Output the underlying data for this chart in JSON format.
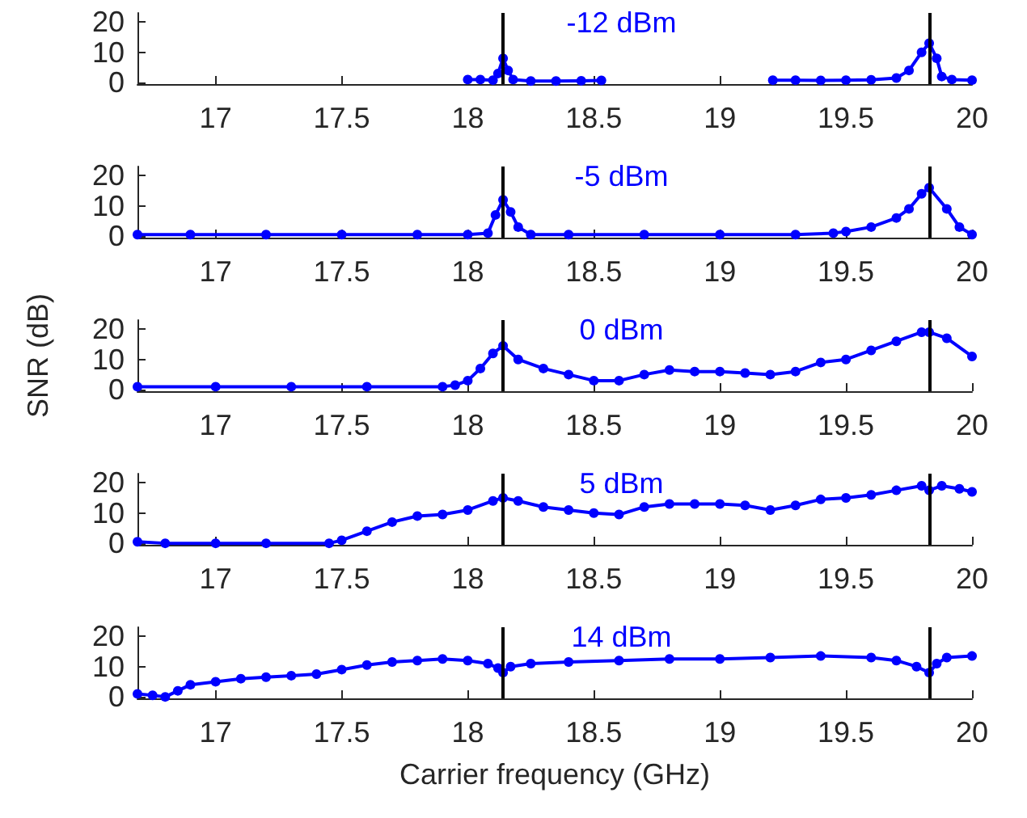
{
  "chart_data": [
    {
      "type": "line",
      "marker": "circle",
      "xlim": [
        16.69,
        20
      ],
      "xticks": [
        17,
        17.5,
        18,
        18.5,
        19,
        19.5,
        20
      ],
      "ylim": [
        -0.5,
        23
      ],
      "yticks": [
        0,
        10,
        20
      ],
      "annotations": [
        "-12 dBm"
      ],
      "ref_lines": [
        {
          "axis": "x",
          "value": 18.14,
          "color": "#000000"
        },
        {
          "axis": "x",
          "value": 19.83,
          "color": "#000000"
        }
      ],
      "series": [
        {
          "color": "#0000ff",
          "x": [
            18.0,
            18.05,
            18.1,
            18.12,
            18.14,
            18.16,
            18.18,
            18.25,
            18.35,
            18.45,
            18.53,
            18.85,
            19.21,
            19.3,
            19.4,
            19.5,
            19.6,
            19.7,
            19.75,
            19.8,
            19.83,
            19.86,
            19.88,
            19.92,
            20.0
          ],
          "values": [
            1,
            1,
            0.8,
            3,
            8,
            4,
            1,
            0.5,
            0.5,
            0.6,
            0.7,
            null,
            0.8,
            0.8,
            0.7,
            0.8,
            0.9,
            1.5,
            4,
            10,
            13,
            8,
            2,
            1,
            0.8
          ]
        }
      ]
    },
    {
      "type": "line",
      "marker": "circle",
      "xlim": [
        16.69,
        20
      ],
      "xticks": [
        17,
        17.5,
        18,
        18.5,
        19,
        19.5,
        20
      ],
      "ylim": [
        -0.5,
        23
      ],
      "yticks": [
        0,
        10,
        20
      ],
      "annotations": [
        "-5 dBm"
      ],
      "ref_lines": [
        {
          "axis": "x",
          "value": 18.14,
          "color": "#000000"
        },
        {
          "axis": "x",
          "value": 19.83,
          "color": "#000000"
        }
      ],
      "series": [
        {
          "color": "#0000ff",
          "x": [
            16.69,
            16.9,
            17.2,
            17.5,
            17.8,
            18.0,
            18.08,
            18.11,
            18.14,
            18.17,
            18.2,
            18.25,
            18.4,
            18.7,
            19.0,
            19.3,
            19.45,
            19.5,
            19.6,
            19.7,
            19.75,
            19.8,
            19.83,
            19.9,
            19.95,
            20.0
          ],
          "values": [
            0.5,
            0.5,
            0.5,
            0.5,
            0.5,
            0.5,
            1,
            7,
            12,
            8,
            3,
            0.5,
            0.5,
            0.5,
            0.5,
            0.5,
            1,
            1.5,
            3,
            6,
            9,
            14,
            16,
            9,
            3,
            0.5
          ]
        }
      ]
    },
    {
      "type": "line",
      "marker": "circle",
      "xlim": [
        16.69,
        20
      ],
      "xticks": [
        17,
        17.5,
        18,
        18.5,
        19,
        19.5,
        20
      ],
      "ylim": [
        -0.5,
        23
      ],
      "yticks": [
        0,
        10,
        20
      ],
      "ylabel": "SNR (dB)",
      "annotations": [
        "0 dBm"
      ],
      "ref_lines": [
        {
          "axis": "x",
          "value": 18.14,
          "color": "#000000"
        },
        {
          "axis": "x",
          "value": 19.83,
          "color": "#000000"
        }
      ],
      "series": [
        {
          "color": "#0000ff",
          "x": [
            16.69,
            17.0,
            17.3,
            17.6,
            17.9,
            17.95,
            18.0,
            18.05,
            18.1,
            18.14,
            18.2,
            18.3,
            18.4,
            18.5,
            18.6,
            18.7,
            18.8,
            18.9,
            19.0,
            19.1,
            19.2,
            19.3,
            19.4,
            19.5,
            19.6,
            19.7,
            19.8,
            19.83,
            19.9,
            20.0
          ],
          "values": [
            1,
            1,
            1,
            1,
            1,
            1.5,
            3,
            7,
            12,
            14.5,
            10,
            7,
            5,
            3,
            3,
            5,
            6.5,
            6,
            6,
            5.5,
            5,
            6,
            9,
            10,
            13,
            16,
            19,
            19,
            17,
            11
          ]
        }
      ]
    },
    {
      "type": "line",
      "marker": "circle",
      "xlim": [
        16.69,
        20
      ],
      "xticks": [
        17,
        17.5,
        18,
        18.5,
        19,
        19.5,
        20
      ],
      "ylim": [
        -0.5,
        23
      ],
      "yticks": [
        0,
        10,
        20
      ],
      "annotations": [
        "5 dBm"
      ],
      "ref_lines": [
        {
          "axis": "x",
          "value": 18.14,
          "color": "#000000"
        },
        {
          "axis": "x",
          "value": 19.83,
          "color": "#000000"
        }
      ],
      "series": [
        {
          "color": "#0000ff",
          "x": [
            16.69,
            16.8,
            17.0,
            17.2,
            17.45,
            17.5,
            17.6,
            17.7,
            17.8,
            17.9,
            18.0,
            18.1,
            18.14,
            18.2,
            18.3,
            18.4,
            18.5,
            18.6,
            18.7,
            18.8,
            18.9,
            19.0,
            19.1,
            19.2,
            19.3,
            19.4,
            19.5,
            19.6,
            19.7,
            19.8,
            19.83,
            19.88,
            19.95,
            20.0
          ],
          "values": [
            0.5,
            0,
            0,
            0,
            0,
            1,
            4,
            7,
            9,
            9.5,
            11,
            14,
            15,
            14,
            12,
            11,
            10,
            9.5,
            12,
            13,
            13,
            13,
            12.5,
            11,
            12.5,
            14.5,
            15,
            16,
            17.5,
            19,
            17.5,
            19,
            18,
            17
          ]
        }
      ]
    },
    {
      "type": "line",
      "marker": "circle",
      "xlim": [
        16.69,
        20
      ],
      "xticks": [
        17,
        17.5,
        18,
        18.5,
        19,
        19.5,
        20
      ],
      "ylim": [
        -0.5,
        23
      ],
      "yticks": [
        0,
        10,
        20
      ],
      "xlabel": "Carrier frequency (GHz)",
      "annotations": [
        "14 dBm"
      ],
      "ref_lines": [
        {
          "axis": "x",
          "value": 18.14,
          "color": "#000000"
        },
        {
          "axis": "x",
          "value": 19.83,
          "color": "#000000"
        }
      ],
      "series": [
        {
          "color": "#0000ff",
          "x": [
            16.69,
            16.75,
            16.8,
            16.85,
            16.9,
            17.0,
            17.1,
            17.2,
            17.3,
            17.4,
            17.5,
            17.6,
            17.7,
            17.8,
            17.9,
            18.0,
            18.08,
            18.12,
            18.14,
            18.17,
            18.25,
            18.4,
            18.6,
            18.8,
            19.0,
            19.2,
            19.4,
            19.6,
            19.7,
            19.78,
            19.83,
            19.86,
            19.9,
            20.0
          ],
          "values": [
            1,
            0.5,
            0,
            2,
            4,
            5,
            6,
            6.5,
            7,
            7.5,
            9,
            10.5,
            11.5,
            12,
            12.5,
            12,
            11,
            9.5,
            8,
            10,
            11,
            11.5,
            12,
            12.5,
            12.5,
            13,
            13.5,
            13,
            12,
            10,
            8,
            11,
            13,
            13.5
          ]
        }
      ]
    }
  ]
}
